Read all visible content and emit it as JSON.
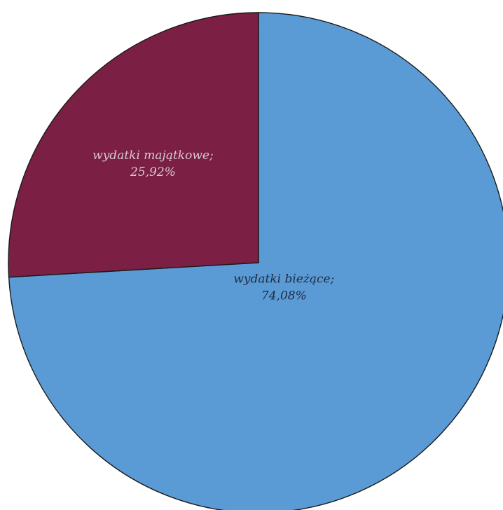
{
  "chart_data": {
    "type": "pie",
    "slices": [
      {
        "label": "wydatki bieżące;",
        "value_text": "74,08%",
        "value": 74.08,
        "color": "#5b9bd5",
        "label_color": "#1f2a44"
      },
      {
        "label": "wydatki majątkowe;",
        "value_text": "25,92%",
        "value": 25.92,
        "color": "#7b1f45",
        "label_color": "#d9c9cf"
      }
    ],
    "start_angle_deg": 0,
    "direction": "clockwise"
  }
}
